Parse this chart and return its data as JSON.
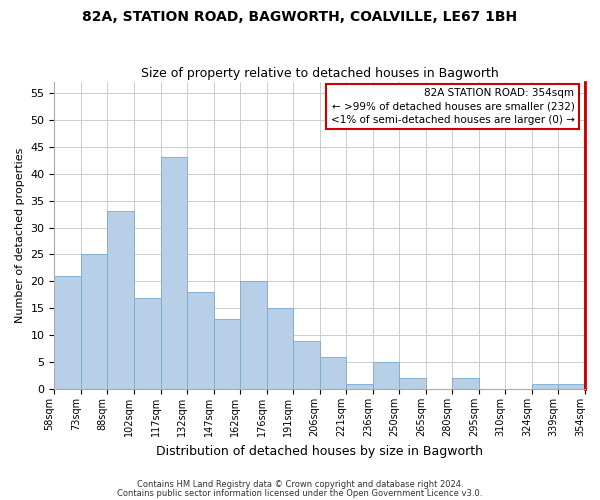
{
  "title": "82A, STATION ROAD, BAGWORTH, COALVILLE, LE67 1BH",
  "subtitle": "Size of property relative to detached houses in Bagworth",
  "xlabel": "Distribution of detached houses by size in Bagworth",
  "ylabel": "Number of detached properties",
  "bar_values": [
    21,
    25,
    33,
    17,
    43,
    18,
    13,
    20,
    15,
    9,
    6,
    1,
    5,
    2,
    0,
    2,
    0,
    0,
    1,
    1
  ],
  "bar_labels": [
    "58sqm",
    "73sqm",
    "88sqm",
    "102sqm",
    "117sqm",
    "132sqm",
    "147sqm",
    "162sqm",
    "176sqm",
    "191sqm",
    "206sqm",
    "221sqm",
    "236sqm",
    "250sqm",
    "265sqm",
    "280sqm",
    "295sqm",
    "310sqm",
    "324sqm",
    "339sqm",
    "354sqm"
  ],
  "bar_color": "#b8cfe8",
  "bar_edge_color": "#7aaad0",
  "annotation_box_title": "82A STATION ROAD: 354sqm",
  "annotation_line1": "← >99% of detached houses are smaller (232)",
  "annotation_line2": "<1% of semi-detached houses are larger (0) →",
  "annotation_box_color": "#ffffff",
  "annotation_box_edge": "#cc0000",
  "footer_line1": "Contains HM Land Registry data © Crown copyright and database right 2024.",
  "footer_line2": "Contains public sector information licensed under the Open Government Licence v3.0.",
  "ylim": [
    0,
    57
  ],
  "yticks": [
    0,
    5,
    10,
    15,
    20,
    25,
    30,
    35,
    40,
    45,
    50,
    55
  ],
  "grid_color": "#cccccc",
  "bg_color": "#ffffff",
  "red_spine_color": "#cc0000",
  "title_fontsize": 10,
  "subtitle_fontsize": 9
}
